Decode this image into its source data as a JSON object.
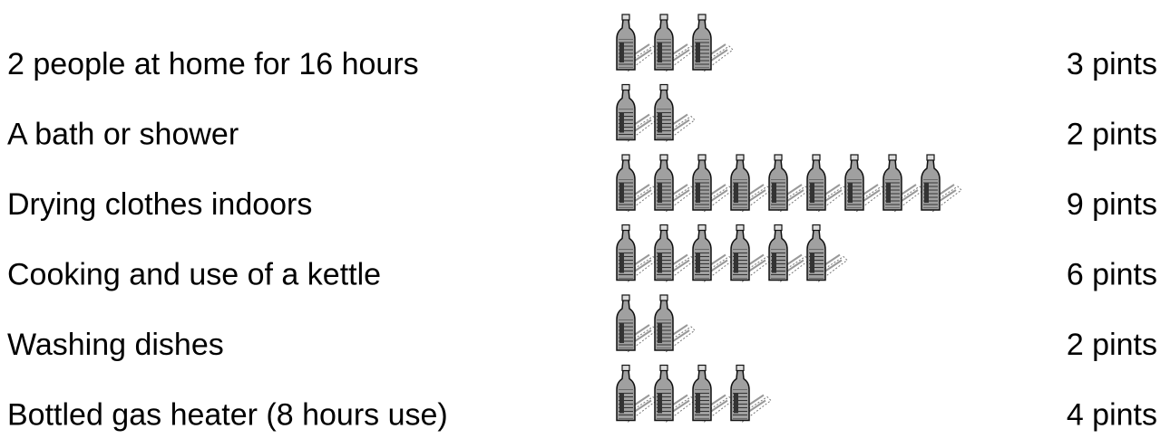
{
  "chart_data": {
    "type": "pictograph",
    "categories": [
      "2 people at home for 16 hours",
      "A bath or shower",
      "Drying clothes indoors",
      "Cooking and use of a kettle",
      "Washing dishes",
      "Bottled gas heater (8 hours use)"
    ],
    "values": [
      3,
      2,
      9,
      6,
      2,
      4
    ],
    "value_labels": [
      "3 pints",
      "2 pints",
      "9 pints",
      "6 pints",
      "2 pints",
      "4 pints"
    ],
    "color": "#a0a0a0"
  }
}
